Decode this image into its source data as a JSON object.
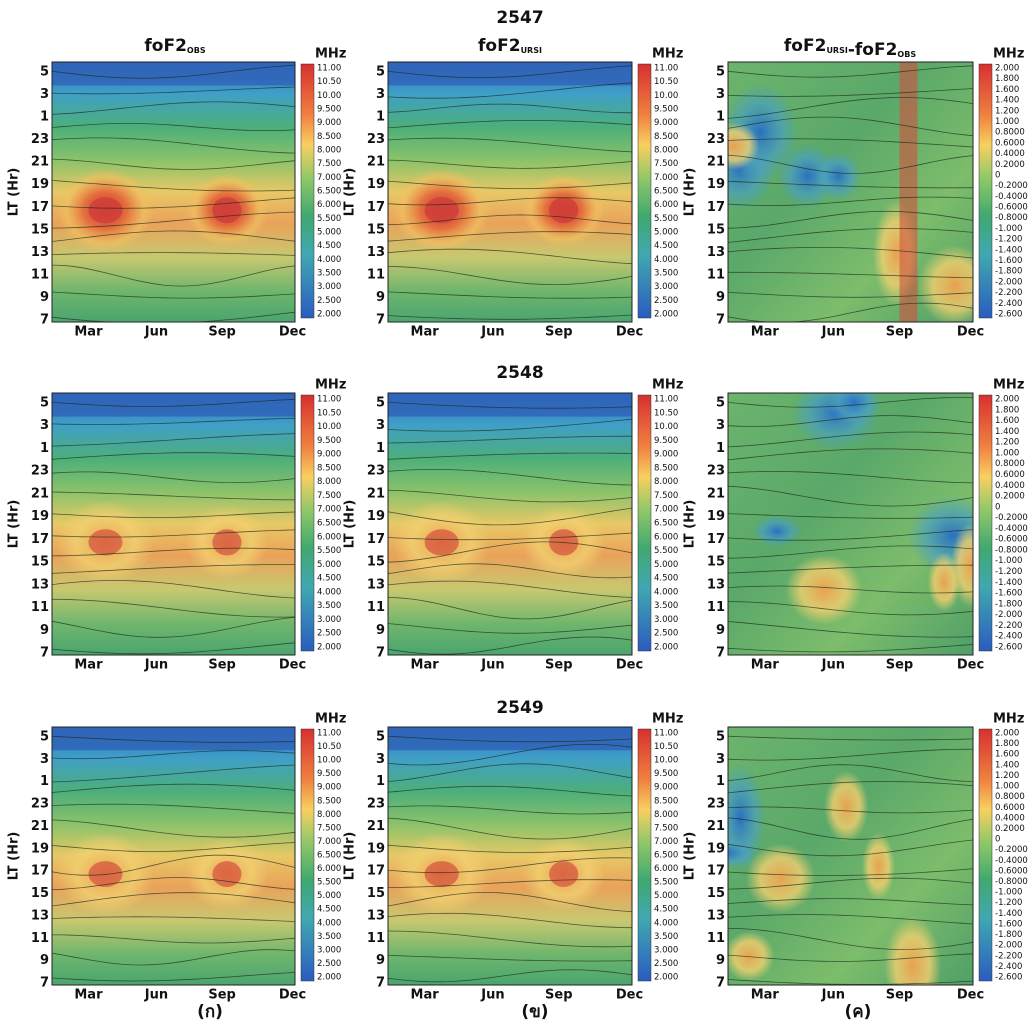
{
  "years": [
    "2547",
    "2548",
    "2549"
  ],
  "columns": [
    {
      "parts": [
        {
          "main": "foF2",
          "sub": "OBS"
        }
      ]
    },
    {
      "parts": [
        {
          "main": "foF2",
          "sub": "URSI"
        }
      ]
    },
    {
      "parts": [
        {
          "main": "foF2",
          "sub": "URSI"
        },
        {
          "main": "-foF2",
          "sub": "OBS"
        }
      ]
    }
  ],
  "y_axis_label": "LT (Hr)",
  "y_ticks": [
    "5",
    "3",
    "1",
    "23",
    "21",
    "19",
    "17",
    "15",
    "13",
    "11",
    "9",
    "7"
  ],
  "x_ticks": [
    "Mar",
    "Jun",
    "Sep",
    "Dec"
  ],
  "colorbar_unit": "MHz",
  "colorbar_fof2": [
    "11.00",
    "10.50",
    "10.00",
    "9.500",
    "9.000",
    "8.500",
    "8.000",
    "7.500",
    "7.000",
    "6.500",
    "6.000",
    "5.500",
    "5.000",
    "4.500",
    "4.000",
    "3.500",
    "3.000",
    "2.500",
    "2.000"
  ],
  "colorbar_diff": [
    "2.000",
    "1.800",
    "1.600",
    "1.400",
    "1.200",
    "1.000",
    "0.8000",
    "0.6000",
    "0.4000",
    "0.2000",
    "0",
    "-0.2000",
    "-0.4000",
    "-0.6000",
    "-0.8000",
    "-1.000",
    "-1.200",
    "-1.400",
    "-1.600",
    "-1.800",
    "-2.000",
    "-2.200",
    "-2.400",
    "-2.600"
  ],
  "panel_labels": [
    "(ก)",
    "(ข)",
    "(ค)"
  ]
}
